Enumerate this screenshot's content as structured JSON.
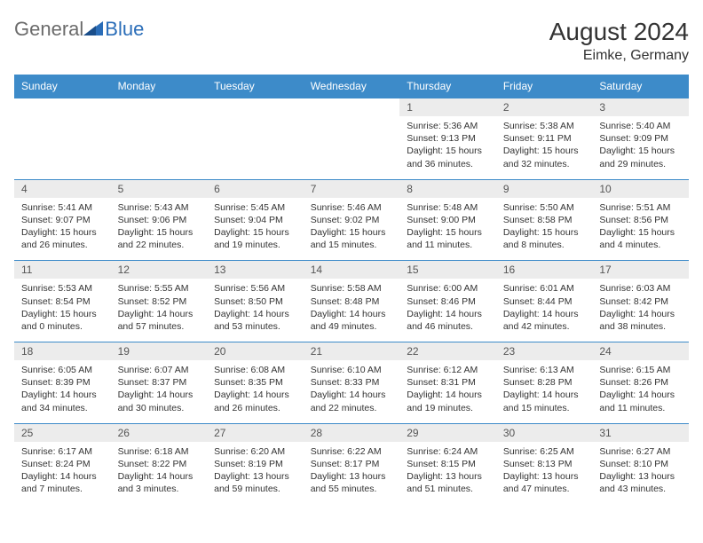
{
  "brand": {
    "part1": "General",
    "part2": "Blue"
  },
  "title": "August 2024",
  "location": "Eimke, Germany",
  "colors": {
    "header_blue": "#3d8bc9",
    "daynum_bg": "#ececec",
    "rule": "#3d8bc9",
    "logo_gray": "#6b6b6b",
    "logo_blue": "#2a6db8"
  },
  "dow": [
    "Sunday",
    "Monday",
    "Tuesday",
    "Wednesday",
    "Thursday",
    "Friday",
    "Saturday"
  ],
  "weeks": [
    [
      null,
      null,
      null,
      null,
      {
        "n": "1",
        "sr": "5:36 AM",
        "ss": "9:13 PM",
        "dl": "15 hours and 36 minutes."
      },
      {
        "n": "2",
        "sr": "5:38 AM",
        "ss": "9:11 PM",
        "dl": "15 hours and 32 minutes."
      },
      {
        "n": "3",
        "sr": "5:40 AM",
        "ss": "9:09 PM",
        "dl": "15 hours and 29 minutes."
      }
    ],
    [
      {
        "n": "4",
        "sr": "5:41 AM",
        "ss": "9:07 PM",
        "dl": "15 hours and 26 minutes."
      },
      {
        "n": "5",
        "sr": "5:43 AM",
        "ss": "9:06 PM",
        "dl": "15 hours and 22 minutes."
      },
      {
        "n": "6",
        "sr": "5:45 AM",
        "ss": "9:04 PM",
        "dl": "15 hours and 19 minutes."
      },
      {
        "n": "7",
        "sr": "5:46 AM",
        "ss": "9:02 PM",
        "dl": "15 hours and 15 minutes."
      },
      {
        "n": "8",
        "sr": "5:48 AM",
        "ss": "9:00 PM",
        "dl": "15 hours and 11 minutes."
      },
      {
        "n": "9",
        "sr": "5:50 AM",
        "ss": "8:58 PM",
        "dl": "15 hours and 8 minutes."
      },
      {
        "n": "10",
        "sr": "5:51 AM",
        "ss": "8:56 PM",
        "dl": "15 hours and 4 minutes."
      }
    ],
    [
      {
        "n": "11",
        "sr": "5:53 AM",
        "ss": "8:54 PM",
        "dl": "15 hours and 0 minutes."
      },
      {
        "n": "12",
        "sr": "5:55 AM",
        "ss": "8:52 PM",
        "dl": "14 hours and 57 minutes."
      },
      {
        "n": "13",
        "sr": "5:56 AM",
        "ss": "8:50 PM",
        "dl": "14 hours and 53 minutes."
      },
      {
        "n": "14",
        "sr": "5:58 AM",
        "ss": "8:48 PM",
        "dl": "14 hours and 49 minutes."
      },
      {
        "n": "15",
        "sr": "6:00 AM",
        "ss": "8:46 PM",
        "dl": "14 hours and 46 minutes."
      },
      {
        "n": "16",
        "sr": "6:01 AM",
        "ss": "8:44 PM",
        "dl": "14 hours and 42 minutes."
      },
      {
        "n": "17",
        "sr": "6:03 AM",
        "ss": "8:42 PM",
        "dl": "14 hours and 38 minutes."
      }
    ],
    [
      {
        "n": "18",
        "sr": "6:05 AM",
        "ss": "8:39 PM",
        "dl": "14 hours and 34 minutes."
      },
      {
        "n": "19",
        "sr": "6:07 AM",
        "ss": "8:37 PM",
        "dl": "14 hours and 30 minutes."
      },
      {
        "n": "20",
        "sr": "6:08 AM",
        "ss": "8:35 PM",
        "dl": "14 hours and 26 minutes."
      },
      {
        "n": "21",
        "sr": "6:10 AM",
        "ss": "8:33 PM",
        "dl": "14 hours and 22 minutes."
      },
      {
        "n": "22",
        "sr": "6:12 AM",
        "ss": "8:31 PM",
        "dl": "14 hours and 19 minutes."
      },
      {
        "n": "23",
        "sr": "6:13 AM",
        "ss": "8:28 PM",
        "dl": "14 hours and 15 minutes."
      },
      {
        "n": "24",
        "sr": "6:15 AM",
        "ss": "8:26 PM",
        "dl": "14 hours and 11 minutes."
      }
    ],
    [
      {
        "n": "25",
        "sr": "6:17 AM",
        "ss": "8:24 PM",
        "dl": "14 hours and 7 minutes."
      },
      {
        "n": "26",
        "sr": "6:18 AM",
        "ss": "8:22 PM",
        "dl": "14 hours and 3 minutes."
      },
      {
        "n": "27",
        "sr": "6:20 AM",
        "ss": "8:19 PM",
        "dl": "13 hours and 59 minutes."
      },
      {
        "n": "28",
        "sr": "6:22 AM",
        "ss": "8:17 PM",
        "dl": "13 hours and 55 minutes."
      },
      {
        "n": "29",
        "sr": "6:24 AM",
        "ss": "8:15 PM",
        "dl": "13 hours and 51 minutes."
      },
      {
        "n": "30",
        "sr": "6:25 AM",
        "ss": "8:13 PM",
        "dl": "13 hours and 47 minutes."
      },
      {
        "n": "31",
        "sr": "6:27 AM",
        "ss": "8:10 PM",
        "dl": "13 hours and 43 minutes."
      }
    ]
  ],
  "labels": {
    "sunrise": "Sunrise:",
    "sunset": "Sunset:",
    "daylight": "Daylight:"
  }
}
